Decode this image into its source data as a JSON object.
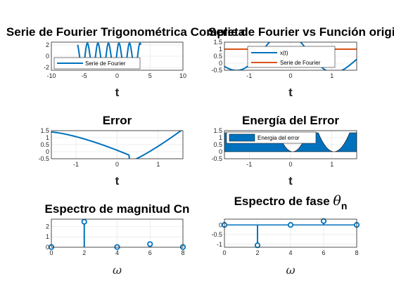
{
  "chart_data": [
    {
      "id": "p1",
      "type": "line",
      "title": "Serie de Fourier Trigonométrica Completa",
      "xlabel": "t",
      "xlim": [
        -10,
        10
      ],
      "ylim": [
        -2.5,
        2.5
      ],
      "xticks": [
        "-10",
        "-5",
        "0",
        "5",
        "10"
      ],
      "yticks": [
        "-2",
        "0",
        "2"
      ],
      "legend": "Serie de Fourier",
      "legend_position": "bottom-left",
      "series": [
        {
          "name": "Serie de Fourier",
          "color": "#0072BD"
        }
      ],
      "grid": true
    },
    {
      "id": "p2",
      "type": "line",
      "title": "Serie de Fourier vs Función original",
      "xlabel": "t",
      "xlim": [
        -1.6,
        1.6
      ],
      "ylim": [
        -0.5,
        1.5
      ],
      "xticks": [
        "-1",
        "0",
        "1"
      ],
      "yticks": [
        "-0.5",
        "0",
        "0.5",
        "1",
        "1.5"
      ],
      "legend_position": "top-center",
      "series": [
        {
          "name": "x(t)",
          "color": "#0072BD"
        },
        {
          "name": "Serie de Fourier",
          "color": "#D95319"
        }
      ],
      "grid": true
    },
    {
      "id": "p3",
      "type": "line",
      "title": "Error",
      "xlabel": "t",
      "xlim": [
        -1.6,
        1.6
      ],
      "ylim": [
        -0.5,
        1.5
      ],
      "xticks": [
        "-1",
        "0",
        "1"
      ],
      "yticks": [
        "-0.5",
        "0",
        "0.5",
        "1",
        "1.5"
      ],
      "series": [
        {
          "name": "error",
          "color": "#0072BD"
        }
      ],
      "grid": true
    },
    {
      "id": "p4",
      "type": "area",
      "title": "Energía del Error",
      "xlabel": "t",
      "xlim": [
        -1.6,
        1.6
      ],
      "ylim": [
        -0.5,
        1.5
      ],
      "xticks": [
        "-1",
        "0",
        "1"
      ],
      "yticks": [
        "-0.5",
        "0",
        "0.5",
        "1",
        "1.5"
      ],
      "legend": "Energia del error",
      "legend_position": "top-left",
      "series": [
        {
          "name": "Energia del error",
          "color": "#0072BD"
        }
      ],
      "grid": true
    },
    {
      "id": "p5",
      "type": "stem",
      "title": "Espectro de magnitud Cn",
      "xlabel": "ω",
      "xlim": [
        0,
        8
      ],
      "ylim": [
        0,
        2.7
      ],
      "xticks": [
        "0",
        "2",
        "4",
        "6",
        "8"
      ],
      "yticks": [
        "0",
        "1",
        "2"
      ],
      "x": [
        0,
        2,
        4,
        6,
        8
      ],
      "y": [
        0.02,
        2.45,
        0.02,
        0.3,
        0.02
      ],
      "color": "#0072BD",
      "grid": true
    },
    {
      "id": "p6",
      "type": "stem",
      "title": "Espectro de fase θn",
      "title_main": "Espectro de fase ",
      "title_theta": "θ",
      "title_sub": "n",
      "xlabel": "ω",
      "xlim": [
        0,
        8
      ],
      "ylim": [
        -1.15,
        0.3
      ],
      "xticks": [
        "0",
        "2",
        "4",
        "6",
        "8"
      ],
      "yticks": [
        "0",
        "-0.5",
        "-1"
      ],
      "x": [
        0,
        2,
        4,
        6,
        8
      ],
      "y": [
        0,
        -1.05,
        0,
        0.2,
        0
      ],
      "color": "#0072BD",
      "grid": true
    }
  ]
}
